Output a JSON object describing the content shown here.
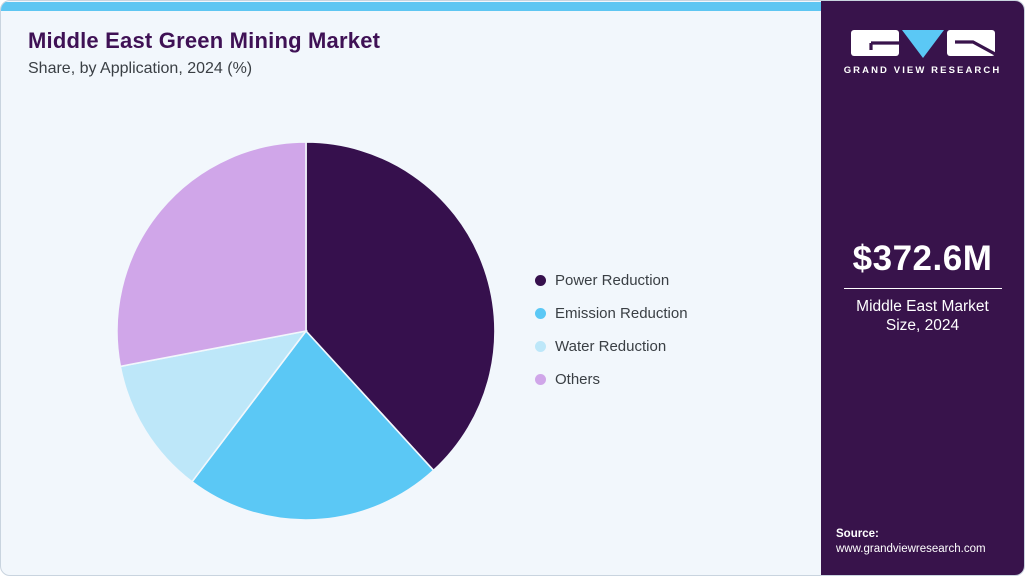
{
  "colors": {
    "accent-bar": "#5ec6f2",
    "card-bg": "#f2f7fc",
    "sidebar-bg": "#38134b",
    "title": "#3f1155",
    "text": "#3a3f44"
  },
  "header": {
    "title": "Middle East Green Mining Market",
    "subtitle": "Share, by Application, 2024 (%)"
  },
  "chart_data": {
    "type": "pie",
    "title": "Middle East Green Mining Market Share, by Application, 2024 (%)",
    "categories": [
      "Power Reduction",
      "Emission Reduction",
      "Water Reduction",
      "Others"
    ],
    "values": [
      38.2,
      22.1,
      11.7,
      28.0
    ],
    "unit": "%",
    "colors": [
      "#36104d",
      "#5bc8f5",
      "#bde7f9",
      "#d0a6e9"
    ],
    "start_angle_deg": 0,
    "direction": "clockwise",
    "legend_position": "right",
    "data_labels_shown": false
  },
  "sidebar": {
    "logo": {
      "text": "GRAND VIEW RESEARCH"
    },
    "market_size": {
      "value": "$372.6M",
      "label": "Middle East Market Size, 2024"
    },
    "source": {
      "label": "Source:",
      "url": "www.grandviewresearch.com"
    }
  }
}
